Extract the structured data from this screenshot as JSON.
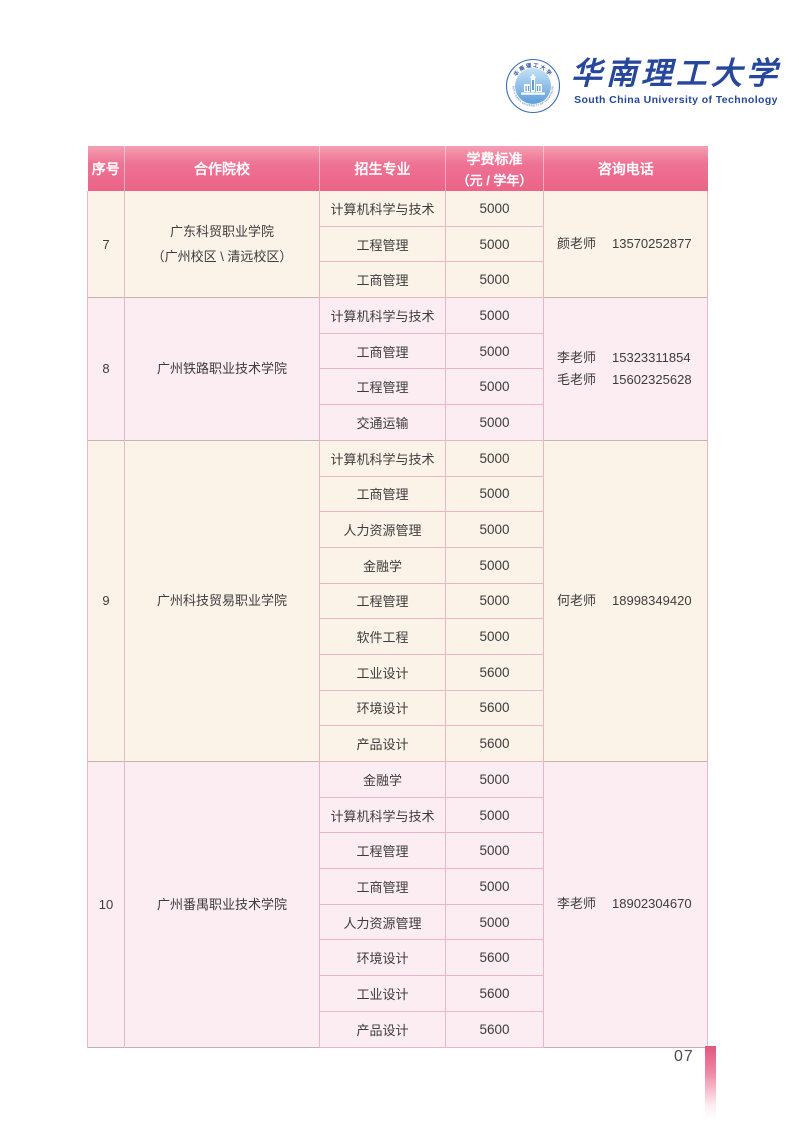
{
  "logo": {
    "seal_icon": "university-seal",
    "name_zh": "华南理工大学",
    "name_en": "South China University of Technology"
  },
  "table": {
    "columns": [
      {
        "label": "序号"
      },
      {
        "label": "合作院校"
      },
      {
        "label": "招生专业"
      },
      {
        "label": "学费标准",
        "sublabel": "（元 / 学年）"
      },
      {
        "label": "咨询电话"
      }
    ],
    "groups": [
      {
        "no": "7",
        "college": [
          "广东科贸职业学院",
          "（广州校区 \\ 清远校区）"
        ],
        "majors": [
          {
            "major": "计算机科学与技术",
            "fee": "5000"
          },
          {
            "major": "工程管理",
            "fee": "5000"
          },
          {
            "major": "工商管理",
            "fee": "5000"
          }
        ],
        "contacts": [
          {
            "name": "颜老师",
            "phone": "13570252877"
          }
        ],
        "bg": "cream"
      },
      {
        "no": "8",
        "college": [
          "广州铁路职业技术学院"
        ],
        "majors": [
          {
            "major": "计算机科学与技术",
            "fee": "5000"
          },
          {
            "major": "工商管理",
            "fee": "5000"
          },
          {
            "major": "工程管理",
            "fee": "5000"
          },
          {
            "major": "交通运输",
            "fee": "5000"
          }
        ],
        "contacts": [
          {
            "name": "李老师",
            "phone": "15323311854"
          },
          {
            "name": "毛老师",
            "phone": "15602325628"
          }
        ],
        "bg": "pink"
      },
      {
        "no": "9",
        "college": [
          "广州科技贸易职业学院"
        ],
        "majors": [
          {
            "major": "计算机科学与技术",
            "fee": "5000"
          },
          {
            "major": "工商管理",
            "fee": "5000"
          },
          {
            "major": "人力资源管理",
            "fee": "5000"
          },
          {
            "major": "金融学",
            "fee": "5000"
          },
          {
            "major": "工程管理",
            "fee": "5000"
          },
          {
            "major": "软件工程",
            "fee": "5000"
          },
          {
            "major": "工业设计",
            "fee": "5600"
          },
          {
            "major": "环境设计",
            "fee": "5600"
          },
          {
            "major": "产品设计",
            "fee": "5600"
          }
        ],
        "contacts": [
          {
            "name": "何老师",
            "phone": "18998349420"
          }
        ],
        "bg": "cream"
      },
      {
        "no": "10",
        "college": [
          "广州番禺职业技术学院"
        ],
        "majors": [
          {
            "major": "金融学",
            "fee": "5000"
          },
          {
            "major": "计算机科学与技术",
            "fee": "5000"
          },
          {
            "major": "工程管理",
            "fee": "5000"
          },
          {
            "major": "工商管理",
            "fee": "5000"
          },
          {
            "major": "人力资源管理",
            "fee": "5000"
          },
          {
            "major": "环境设计",
            "fee": "5600"
          },
          {
            "major": "工业设计",
            "fee": "5600"
          },
          {
            "major": "产品设计",
            "fee": "5600"
          }
        ],
        "contacts": [
          {
            "name": "李老师",
            "phone": "18902304670"
          }
        ],
        "bg": "pink"
      }
    ]
  },
  "footer": {
    "page_number": "07"
  },
  "colors": {
    "header_pink": "#ee7293",
    "row_cream": "#fbf3e8",
    "row_pink": "#fbedf2",
    "cell_border": "#eab6c4",
    "logo_blue": "#26479b",
    "footer_bar": "#e4567e"
  }
}
